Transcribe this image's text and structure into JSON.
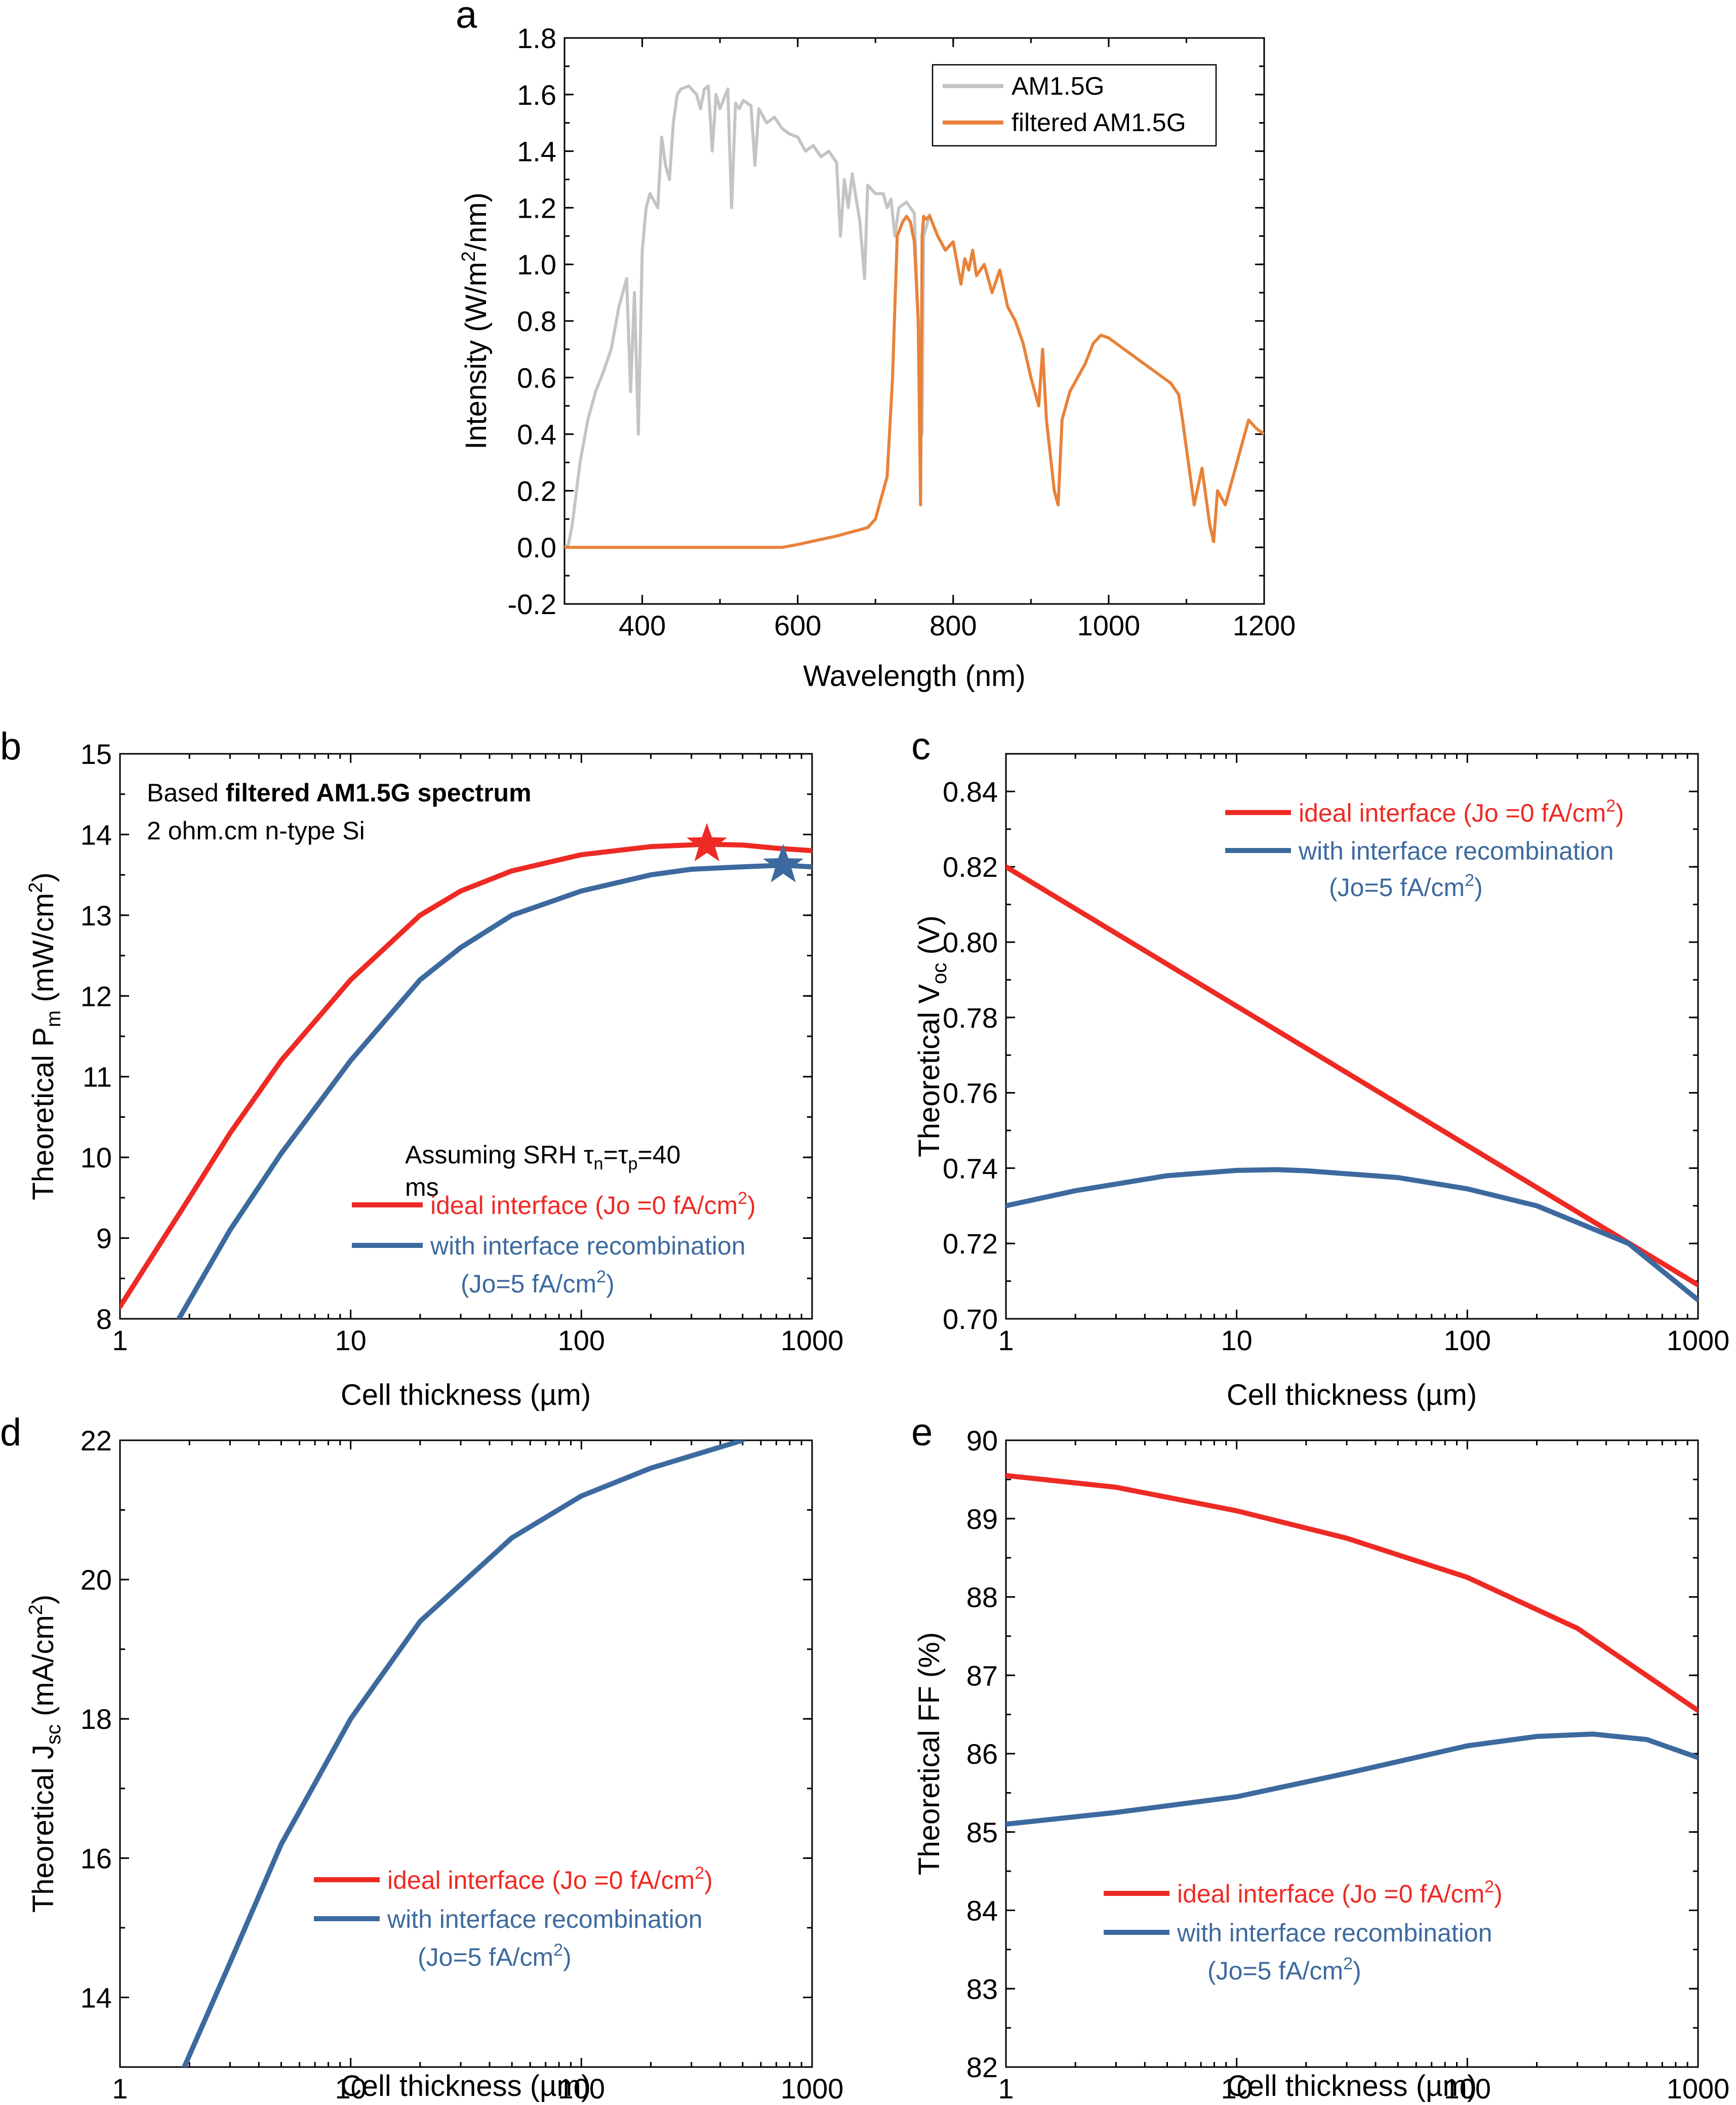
{
  "colors": {
    "red": "#ee2a24",
    "blue": "#3d6a9e",
    "gray": "#c4c4c4",
    "orange": "#e8823a"
  },
  "legend_common": {
    "ideal": "ideal interface (Jo =0 fA/cm²)",
    "recomb_line1": "with interface recombination",
    "recomb_line2": "(Jo=5 fA/cm²)"
  },
  "chart_data": [
    {
      "panel": "a",
      "type": "line",
      "xlabel": "Wavelength (nm)",
      "ylabel": "Intensity (W/m²/nm)",
      "xlim": [
        300,
        1200
      ],
      "ylim": [
        -0.2,
        1.8
      ],
      "xticks": [
        400,
        600,
        800,
        1000,
        1200
      ],
      "yticks": [
        -0.2,
        0.0,
        0.2,
        0.4,
        0.6,
        0.8,
        1.0,
        1.2,
        1.4,
        1.6,
        1.8
      ],
      "ytick_labels": [
        "-0.2",
        "0.0",
        "0.2",
        "0.4",
        "0.6",
        "0.8",
        "1.0",
        "1.2",
        "1.4",
        "1.6",
        "1.8"
      ],
      "legend": [
        "AM1.5G",
        "filtered AM1.5G"
      ],
      "series": [
        {
          "name": "AM1.5G",
          "x": [
            300,
            305,
            310,
            320,
            330,
            340,
            350,
            360,
            370,
            380,
            385,
            390,
            395,
            400,
            405,
            410,
            420,
            425,
            430,
            435,
            440,
            445,
            450,
            460,
            470,
            475,
            480,
            485,
            490,
            495,
            500,
            510,
            515,
            520,
            525,
            530,
            540,
            545,
            550,
            560,
            570,
            580,
            590,
            600,
            610,
            620,
            630,
            640,
            650,
            655,
            660,
            665,
            670,
            680,
            686,
            690,
            700,
            710,
            715,
            720,
            725,
            730,
            740,
            750,
            760,
            762,
            770
          ],
          "values": [
            0.0,
            0.01,
            0.08,
            0.3,
            0.45,
            0.55,
            0.62,
            0.7,
            0.85,
            0.95,
            0.55,
            0.9,
            0.4,
            1.05,
            1.2,
            1.25,
            1.2,
            1.45,
            1.35,
            1.3,
            1.5,
            1.6,
            1.62,
            1.63,
            1.6,
            1.55,
            1.62,
            1.63,
            1.4,
            1.6,
            1.55,
            1.62,
            1.2,
            1.57,
            1.55,
            1.58,
            1.56,
            1.35,
            1.55,
            1.5,
            1.52,
            1.48,
            1.46,
            1.45,
            1.4,
            1.42,
            1.38,
            1.4,
            1.36,
            1.1,
            1.3,
            1.2,
            1.32,
            1.15,
            0.95,
            1.28,
            1.25,
            1.25,
            1.2,
            1.23,
            1.1,
            1.2,
            1.22,
            1.18,
            0.4,
            1.1,
            1.18
          ]
        },
        {
          "name": "filtered AM1.5G",
          "x": [
            300,
            400,
            500,
            580,
            600,
            650,
            690,
            700,
            715,
            722,
            728,
            735,
            740,
            745,
            750,
            755,
            758,
            760,
            762,
            765,
            770,
            780,
            790,
            800,
            810,
            815,
            820,
            825,
            830,
            840,
            850,
            860,
            870,
            880,
            890,
            900,
            910,
            915,
            920,
            930,
            935,
            940,
            950,
            960,
            970,
            980,
            990,
            1000,
            1020,
            1040,
            1060,
            1080,
            1090,
            1095,
            1100,
            1110,
            1120,
            1130,
            1135,
            1140,
            1150,
            1160,
            1170,
            1180,
            1190,
            1200
          ],
          "values": [
            0.0,
            0.0,
            0.0,
            0.0,
            0.01,
            0.04,
            0.07,
            0.1,
            0.25,
            0.6,
            1.1,
            1.15,
            1.17,
            1.15,
            1.08,
            0.8,
            0.15,
            1.1,
            1.17,
            1.16,
            1.17,
            1.1,
            1.05,
            1.08,
            0.93,
            1.02,
            0.98,
            1.05,
            0.96,
            1.0,
            0.9,
            0.98,
            0.85,
            0.8,
            0.72,
            0.6,
            0.5,
            0.7,
            0.45,
            0.2,
            0.15,
            0.45,
            0.55,
            0.6,
            0.65,
            0.72,
            0.75,
            0.74,
            0.7,
            0.66,
            0.62,
            0.58,
            0.54,
            0.45,
            0.35,
            0.15,
            0.28,
            0.08,
            0.02,
            0.2,
            0.15,
            0.25,
            0.35,
            0.45,
            0.42,
            0.4
          ]
        }
      ]
    },
    {
      "panel": "b",
      "type": "line",
      "xscale": "log",
      "xlabel": "Cell thickness (µm)",
      "ylabel": "Theoretical Pm (mW/cm²)",
      "xlim": [
        1,
        1000
      ],
      "ylim": [
        8,
        15
      ],
      "xticks": [
        1,
        10,
        100,
        1000
      ],
      "yticks": [
        8,
        9,
        10,
        11,
        12,
        13,
        14,
        15
      ],
      "note_line1_prefix": "Based ",
      "note_line1_bold": "filtered AM1.5G spectrum",
      "note_line2": "2 ohm.cm n-type Si",
      "note_srh_line1": "Assuming SRH τn=τp=40",
      "note_srh_line2": "ms",
      "markers": [
        {
          "series": "ideal interface",
          "x": 350,
          "y": 13.88,
          "shape": "star"
        },
        {
          "series": "with interface recombination",
          "x": 750,
          "y": 13.62,
          "shape": "star"
        }
      ],
      "series": [
        {
          "name": "ideal interface",
          "x": [
            1,
            2,
            3,
            5,
            10,
            20,
            30,
            50,
            100,
            200,
            350,
            500,
            700,
            1000
          ],
          "values": [
            8.15,
            9.5,
            10.3,
            11.2,
            12.2,
            13.0,
            13.3,
            13.55,
            13.75,
            13.85,
            13.88,
            13.87,
            13.83,
            13.8
          ]
        },
        {
          "name": "with interface recombination",
          "x": [
            1.8,
            3,
            5,
            10,
            20,
            30,
            50,
            100,
            200,
            300,
            500,
            750,
            1000
          ],
          "values": [
            8.0,
            9.1,
            10.05,
            11.2,
            12.2,
            12.6,
            13.0,
            13.3,
            13.5,
            13.57,
            13.6,
            13.62,
            13.6
          ]
        }
      ]
    },
    {
      "panel": "c",
      "type": "line",
      "xscale": "log",
      "xlabel": "Cell thickness (µm)",
      "ylabel": "Theoretical Voc (V)",
      "xlim": [
        1,
        1000
      ],
      "ylim": [
        0.7,
        0.85
      ],
      "xticks": [
        1,
        10,
        100,
        1000
      ],
      "yticks": [
        0.7,
        0.72,
        0.74,
        0.76,
        0.78,
        0.8,
        0.82,
        0.84
      ],
      "ytick_labels": [
        "0.70",
        "0.72",
        "0.74",
        "0.76",
        "0.78",
        "0.80",
        "0.82",
        "0.84"
      ],
      "series": [
        {
          "name": "ideal interface",
          "x": [
            1,
            10,
            100,
            1000
          ],
          "values": [
            0.82,
            0.783,
            0.746,
            0.709
          ]
        },
        {
          "name": "with interface recombination",
          "x": [
            1,
            2,
            5,
            10,
            15,
            20,
            50,
            100,
            200,
            500,
            1000
          ],
          "values": [
            0.73,
            0.734,
            0.738,
            0.7394,
            0.7396,
            0.7393,
            0.7375,
            0.7345,
            0.73,
            0.72,
            0.705
          ]
        }
      ]
    },
    {
      "panel": "d",
      "type": "line",
      "xscale": "log",
      "xlabel": "Cell thickness (µm)",
      "ylabel": "Theoretical Jsc (mA/cm²)",
      "xlim": [
        1,
        1000
      ],
      "ylim": [
        13,
        22
      ],
      "xticks": [
        1,
        10,
        100,
        1000
      ],
      "yticks": [
        14,
        16,
        18,
        20,
        22
      ],
      "series": [
        {
          "name": "with interface recombination",
          "x": [
            1.9,
            3,
            5,
            10,
            20,
            50,
            100,
            200,
            500
          ],
          "values": [
            13.0,
            14.5,
            16.2,
            18.0,
            19.4,
            20.6,
            21.2,
            21.6,
            22.0
          ]
        }
      ]
    },
    {
      "panel": "e",
      "type": "line",
      "xscale": "log",
      "xlabel": "Cell thickness (µm)",
      "ylabel": "Theoretical FF (%)",
      "xlim": [
        1,
        1000
      ],
      "ylim": [
        82,
        90
      ],
      "xticks": [
        1,
        10,
        100,
        1000
      ],
      "yticks": [
        82,
        83,
        84,
        85,
        86,
        87,
        88,
        89,
        90
      ],
      "series": [
        {
          "name": "ideal interface",
          "x": [
            1,
            3,
            10,
            30,
            100,
            300,
            1000
          ],
          "values": [
            89.55,
            89.4,
            89.1,
            88.75,
            88.25,
            87.6,
            86.55
          ]
        },
        {
          "name": "with interface recombination",
          "x": [
            1,
            3,
            10,
            30,
            100,
            200,
            350,
            600,
            1000
          ],
          "values": [
            85.1,
            85.25,
            85.45,
            85.75,
            86.1,
            86.22,
            86.25,
            86.18,
            85.95
          ]
        }
      ]
    }
  ]
}
